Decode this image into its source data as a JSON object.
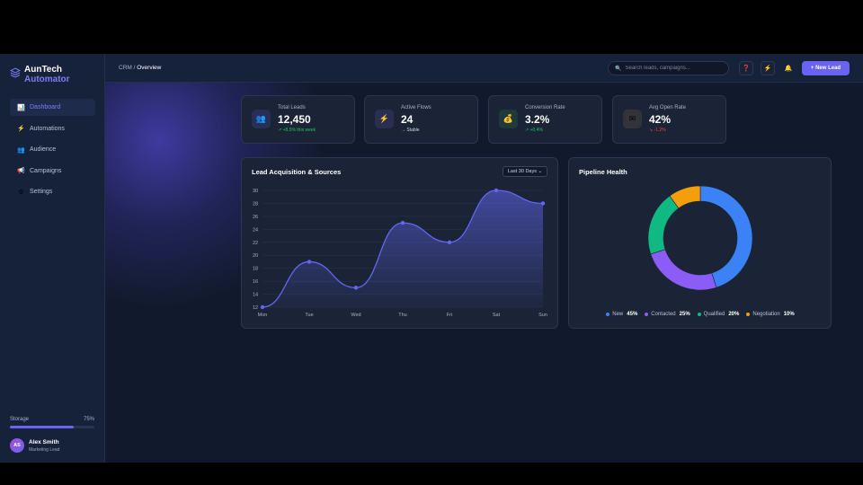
{
  "brand": {
    "name": "AunTech",
    "sub": "Automator"
  },
  "nav": [
    {
      "label": "Dashboard",
      "icon": "bar-chart-icon",
      "glyph": "📊",
      "active": true
    },
    {
      "label": "Automations",
      "icon": "lightning-icon",
      "glyph": "⚡",
      "active": false
    },
    {
      "label": "Audience",
      "icon": "people-icon",
      "glyph": "👥",
      "active": false
    },
    {
      "label": "Campaigns",
      "icon": "megaphone-icon",
      "glyph": "📢",
      "active": false
    },
    {
      "label": "Settings",
      "icon": "gear-icon",
      "glyph": "⚙",
      "active": false
    }
  ],
  "storage": {
    "label": "Storage",
    "percent_text": "75%",
    "fraction": 0.75
  },
  "user": {
    "initials": "AS",
    "name": "Alex Smith",
    "role": "Marketing Lead"
  },
  "breadcrumb": {
    "parent": "CRM",
    "separator": "/",
    "current": "Overview"
  },
  "search": {
    "placeholder": "Search leads, campaigns..."
  },
  "toolbar": {
    "help_glyph": "❓",
    "flash_glyph": "⚡",
    "bell_glyph": "🔔",
    "new_lead_label": "+ New Lead"
  },
  "stats": [
    {
      "label": "Total Leads",
      "value": "12,450",
      "trend": "↗ +8.5% this week",
      "trend_color": "#22c55e",
      "icon": "people-icon",
      "glyph": "👥",
      "icon_bg": "#282f55"
    },
    {
      "label": "Active Flows",
      "value": "24",
      "trend": "→ Stable",
      "trend_color": "#d2d7e5",
      "icon": "lightning-icon",
      "glyph": "⚡",
      "icon_bg": "#2a2f52"
    },
    {
      "label": "Conversion Rate",
      "value": "3.2%",
      "trend": "↗ +0.4%",
      "trend_color": "#22c55e",
      "icon": "money-bag-icon",
      "glyph": "💰",
      "icon_bg": "#1f3a3a"
    },
    {
      "label": "Avg Open Rate",
      "value": "42%",
      "trend": "↘ -1.2%",
      "trend_color": "#ef4444",
      "icon": "envelope-icon",
      "glyph": "✉",
      "icon_bg": "#33333a"
    }
  ],
  "lead_chart": {
    "title": "Lead Acquisition & Sources",
    "range_label": "Last 30 Days ⌄",
    "line_color": "#6366f1"
  },
  "pipeline": {
    "title": "Pipeline Health"
  },
  "chart_data": [
    {
      "type": "area",
      "title": "Lead Acquisition & Sources",
      "categories": [
        "Mon",
        "Tue",
        "Wed",
        "Thu",
        "Fri",
        "Sat",
        "Sun"
      ],
      "values": [
        12,
        19,
        15,
        25,
        22,
        30,
        28
      ],
      "ylim": [
        12,
        30
      ],
      "yticks": [
        "30",
        "28",
        "26",
        "24",
        "22",
        "20",
        "18",
        "16",
        "14",
        "12"
      ],
      "grid": true
    },
    {
      "type": "pie",
      "title": "Pipeline Health",
      "labels": [
        "New",
        "Contacted",
        "Qualified",
        "Negotiation"
      ],
      "values": [
        45,
        25,
        20,
        10
      ],
      "value_labels": [
        "45%",
        "25%",
        "20%",
        "10%"
      ],
      "colors": [
        "#3b82f6",
        "#8b5cf6",
        "#10b981",
        "#f59e0b"
      ],
      "legend": "bottom"
    }
  ]
}
